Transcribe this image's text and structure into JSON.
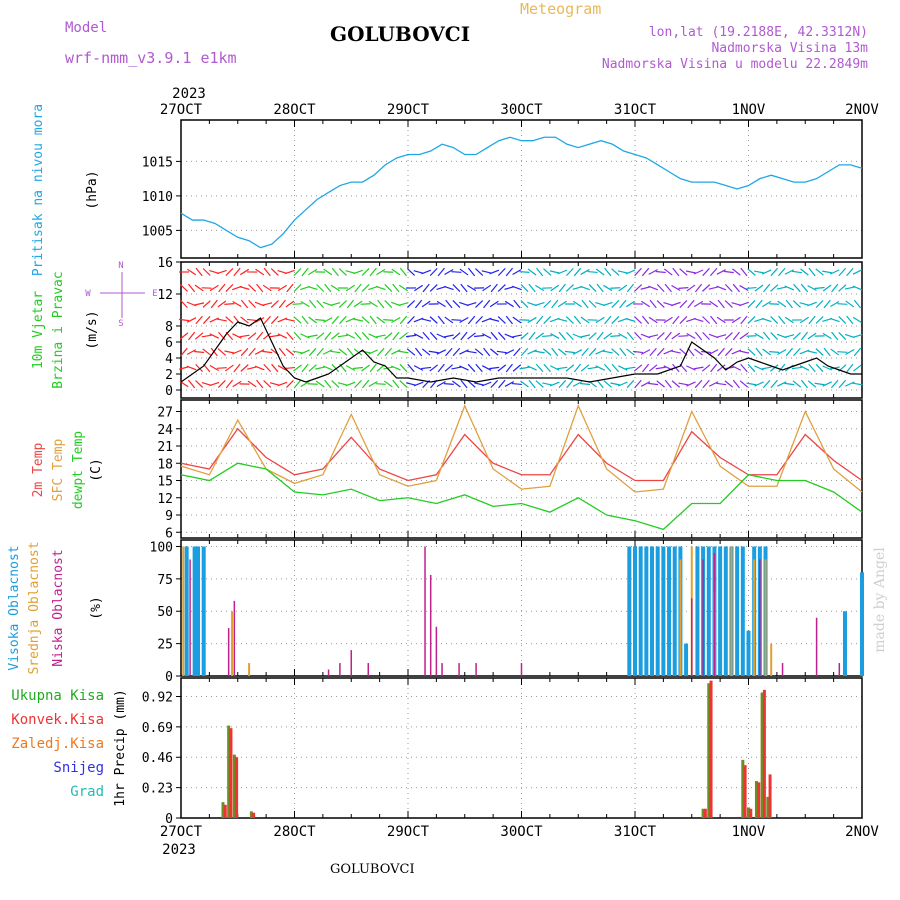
{
  "header": {
    "model_label": "Model",
    "model_name": "wrf-nmm_v3.9.1 e1km",
    "station": "GOLUBOVCI",
    "meteogram": "Meteogram",
    "lonlat": "lon,lat (19.2188E, 42.3312N)",
    "altitude": "Nadmorska Visina 13m",
    "model_altitude": "Nadmorska Visina u modelu 22.2849m",
    "footer_station": "GOLUBOVCI",
    "watermark": "made by Angel"
  },
  "colors": {
    "pressure": "#1ea7e6",
    "temp": "#ee4444",
    "sfc": "#e0a040",
    "dewpt": "#22cc22",
    "high_cloud": "#1b9ee0",
    "mid_cloud": "#e0a030",
    "low_cloud": "#c0208c",
    "total_precip": "#6b8e23",
    "conv_precip": "#ee3333",
    "magenta": "#b05ad0",
    "orange_header": "#e8b85a"
  },
  "chart_data": [
    {
      "type": "line",
      "panel": "pressure",
      "ylabel": [
        "Pritisak na nivou mora",
        "(hPa)"
      ],
      "x_ticks": [
        "27OCT",
        "28OCT",
        "29OCT",
        "30OCT",
        "31OCT",
        "1NOV",
        "2NOV"
      ],
      "year": "2023",
      "ylim": [
        1001,
        1021
      ],
      "yticks": [
        1005,
        1010,
        1015
      ],
      "grid": true,
      "series": [
        {
          "name": "Pritisak na nivou mora",
          "x": [
            0,
            0.1,
            0.2,
            0.3,
            0.4,
            0.5,
            0.6,
            0.7,
            0.8,
            0.9,
            1.0,
            1.1,
            1.2,
            1.3,
            1.4,
            1.5,
            1.6,
            1.7,
            1.8,
            1.9,
            2.0,
            2.1,
            2.2,
            2.3,
            2.4,
            2.5,
            2.6,
            2.7,
            2.8,
            2.9,
            3.0,
            3.1,
            3.2,
            3.3,
            3.4,
            3.5,
            3.6,
            3.7,
            3.8,
            3.9,
            4.0,
            4.1,
            4.2,
            4.3,
            4.4,
            4.5,
            4.6,
            4.7,
            4.8,
            4.9,
            5.0,
            5.1,
            5.2,
            5.3,
            5.4,
            5.5,
            5.6,
            5.7,
            5.8,
            5.9,
            6.0
          ],
          "values": [
            1007.5,
            1006.5,
            1006.5,
            1006,
            1005,
            1004,
            1003.5,
            1002.5,
            1003,
            1004.5,
            1006.5,
            1008,
            1009.5,
            1010.5,
            1011.5,
            1012,
            1012,
            1013,
            1014.5,
            1015.5,
            1016,
            1016,
            1016.5,
            1017.5,
            1017,
            1016,
            1016,
            1017,
            1018,
            1018.5,
            1018,
            1018,
            1018.5,
            1018.5,
            1017.5,
            1017,
            1017.5,
            1018,
            1017.5,
            1016.5,
            1016,
            1015.5,
            1014.5,
            1013.5,
            1012.5,
            1012,
            1012,
            1012,
            1011.5,
            1011,
            1011.5,
            1012.5,
            1013,
            1012.5,
            1012,
            1012,
            1012.5,
            1013.5,
            1014.5,
            1014.5,
            1014
          ]
        }
      ]
    },
    {
      "type": "line",
      "panel": "wind",
      "ylabel": [
        "10m Vjetar",
        "Brzina i Pravac",
        "(m/s)"
      ],
      "compass": {
        "n": "N",
        "s": "S",
        "e": "E",
        "w": "W"
      },
      "ylim": [
        -1,
        16
      ],
      "yticks": [
        0,
        2,
        4,
        6,
        8,
        12,
        16
      ],
      "grid": true,
      "series": [
        {
          "name": "10m Vjetar Brzina",
          "x": [
            0,
            0.1,
            0.2,
            0.3,
            0.4,
            0.5,
            0.6,
            0.7,
            0.8,
            0.9,
            1.0,
            1.1,
            1.2,
            1.3,
            1.4,
            1.5,
            1.6,
            1.7,
            1.8,
            1.9,
            2.0,
            2.2,
            2.4,
            2.6,
            2.8,
            3.0,
            3.2,
            3.4,
            3.6,
            3.8,
            4.0,
            4.2,
            4.4,
            4.5,
            4.6,
            4.7,
            4.8,
            4.9,
            5.0,
            5.1,
            5.2,
            5.3,
            5.4,
            5.5,
            5.6,
            5.7,
            5.8,
            5.9,
            6.0
          ],
          "values": [
            1,
            2,
            3,
            5,
            7,
            8.5,
            8,
            9,
            6,
            3,
            1.5,
            1,
            1.5,
            2,
            3,
            4,
            5,
            3.5,
            3,
            1.5,
            1.5,
            1,
            1.5,
            1,
            1.5,
            1.5,
            1.5,
            1.5,
            1,
            1.5,
            2,
            2,
            3,
            6,
            5,
            4,
            2.5,
            3.5,
            4,
            3.5,
            3,
            2.5,
            3,
            3.5,
            4,
            3,
            2.5,
            2,
            2
          ]
        }
      ],
      "arrow_colors_by_day": [
        "#ff2222",
        "#22cc22",
        "#2222ee",
        "#00b0c0",
        "#8a2be2",
        "#00b0c0"
      ]
    },
    {
      "type": "line",
      "panel": "temperature",
      "ylabel": [
        "2m Temp",
        "SFC Temp",
        "dewpt Temp",
        "(C)"
      ],
      "ylim": [
        5,
        29
      ],
      "yticks": [
        6,
        9,
        12,
        15,
        18,
        21,
        24,
        27
      ],
      "grid": true,
      "series": [
        {
          "name": "2m Temp",
          "x": [
            0,
            0.25,
            0.5,
            0.75,
            1.0,
            1.25,
            1.5,
            1.75,
            2.0,
            2.25,
            2.5,
            2.75,
            3.0,
            3.25,
            3.5,
            3.75,
            4.0,
            4.25,
            4.5,
            4.75,
            5.0,
            5.25,
            5.5,
            5.75,
            6.0
          ],
          "values": [
            18,
            17,
            24,
            19,
            16,
            17,
            22.5,
            17,
            15,
            16,
            23,
            18,
            16,
            16,
            23,
            18,
            15,
            15,
            23.5,
            19,
            16,
            16,
            23,
            18.5,
            15
          ]
        },
        {
          "name": "SFC Temp",
          "x": [
            0,
            0.25,
            0.5,
            0.75,
            1.0,
            1.25,
            1.5,
            1.75,
            2.0,
            2.25,
            2.5,
            2.75,
            3.0,
            3.25,
            3.5,
            3.75,
            4.0,
            4.25,
            4.5,
            4.75,
            5.0,
            5.25,
            5.5,
            5.75,
            6.0
          ],
          "values": [
            17.5,
            16,
            25.5,
            17,
            14.5,
            16,
            26.5,
            16,
            14,
            15,
            28,
            17,
            13.5,
            14,
            28,
            17,
            13,
            13.5,
            27,
            17.5,
            14,
            14,
            27,
            17,
            13
          ]
        },
        {
          "name": "dewpt Temp",
          "x": [
            0,
            0.25,
            0.5,
            0.75,
            1.0,
            1.25,
            1.5,
            1.75,
            2.0,
            2.25,
            2.5,
            2.75,
            3.0,
            3.25,
            3.5,
            3.75,
            4.0,
            4.25,
            4.5,
            4.75,
            5.0,
            5.25,
            5.5,
            5.75,
            6.0
          ],
          "values": [
            16,
            15,
            18,
            17,
            13,
            12.5,
            13.5,
            11.5,
            12,
            11,
            12.5,
            10.5,
            11,
            9.5,
            12,
            9,
            8,
            6.5,
            11,
            11,
            16,
            15,
            15,
            13,
            9.5
          ]
        }
      ]
    },
    {
      "type": "bar",
      "panel": "clouds",
      "ylabel": [
        "Visoka Oblacnost",
        "Srednja Oblacnost",
        "Niska Oblacnost",
        "(%)"
      ],
      "ylim": [
        0,
        105
      ],
      "yticks": [
        0,
        25,
        50,
        75,
        100
      ],
      "grid": true,
      "series": [
        {
          "name": "Visoka Oblacnost",
          "x": [
            0.05,
            0.12,
            0.15,
            0.2,
            3.95,
            4.0,
            4.05,
            4.1,
            4.15,
            4.2,
            4.25,
            4.3,
            4.35,
            4.4,
            4.45,
            4.55,
            4.6,
            4.65,
            4.7,
            4.75,
            4.8,
            4.85,
            4.9,
            4.95,
            5.0,
            5.05,
            5.1,
            5.15,
            5.85,
            6.0
          ],
          "values": [
            100,
            100,
            100,
            100,
            100,
            100,
            100,
            100,
            100,
            100,
            100,
            100,
            100,
            100,
            25,
            100,
            100,
            100,
            100,
            100,
            100,
            100,
            100,
            100,
            35,
            100,
            100,
            100,
            50,
            80
          ]
        },
        {
          "name": "Srednja Oblacnost",
          "x": [
            0.02,
            0.45,
            0.6,
            4.4,
            4.5,
            4.7,
            4.85,
            5.05,
            5.15,
            5.2
          ],
          "values": [
            100,
            50,
            10,
            90,
            100,
            65,
            100,
            90,
            90,
            25
          ]
        },
        {
          "name": "Niska Oblacnost",
          "x": [
            0.08,
            0.42,
            0.47,
            1.3,
            1.4,
            1.5,
            1.65,
            2.15,
            2.2,
            2.25,
            2.3,
            2.45,
            2.6,
            3.0,
            4.5,
            4.6,
            4.7,
            5.1,
            5.3,
            5.6,
            5.8
          ],
          "values": [
            90,
            37,
            58,
            5,
            10,
            20,
            10,
            100,
            78,
            38,
            10,
            10,
            10,
            10,
            60,
            90,
            95,
            90,
            10,
            45,
            10
          ]
        }
      ]
    },
    {
      "type": "bar",
      "panel": "precip",
      "ylabel": [
        "1hr Precip (mm)"
      ],
      "legend": [
        "Ukupna Kisa",
        "Konvek.Kisa",
        "Zaledj.Kisa",
        "Snijeg",
        "Grad"
      ],
      "legend_colors": [
        "#22aa22",
        "#ee3333",
        "#ee7722",
        "#3333dd",
        "#22bbbb"
      ],
      "ylim": [
        0,
        1.06
      ],
      "yticks": [
        0,
        0.23,
        0.46,
        0.69,
        0.92
      ],
      "grid": true,
      "series": [
        {
          "name": "Ukupna Kisa",
          "x": [
            0.37,
            0.42,
            0.47,
            0.62,
            4.6,
            4.65,
            4.95,
            5.0,
            5.07,
            5.12,
            5.17
          ],
          "values": [
            0.12,
            0.7,
            0.48,
            0.05,
            0.07,
            1.02,
            0.44,
            0.08,
            0.28,
            0.95,
            0.16
          ]
        },
        {
          "name": "Konvek.Kisa",
          "x": [
            0.39,
            0.44,
            0.49,
            0.64,
            4.62,
            4.67,
            4.97,
            5.02,
            5.09,
            5.14,
            5.19
          ],
          "values": [
            0.1,
            0.68,
            0.46,
            0.04,
            0.07,
            1.04,
            0.4,
            0.07,
            0.27,
            0.97,
            0.33
          ]
        }
      ]
    }
  ]
}
